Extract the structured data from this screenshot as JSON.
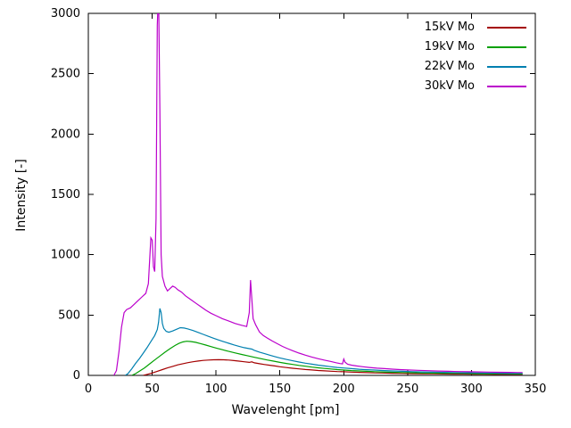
{
  "chart_data": {
    "type": "line",
    "title": "",
    "xlabel": "Wavelenght [pm]",
    "ylabel": "Intensity [-]",
    "xlim": [
      0,
      350
    ],
    "ylim": [
      0,
      3000
    ],
    "xticks": [
      0,
      50,
      100,
      150,
      200,
      250,
      300,
      350
    ],
    "yticks": [
      0,
      500,
      1000,
      1500,
      2000,
      2500,
      3000
    ],
    "grid": false,
    "legend_position": "top-right",
    "series": [
      {
        "name": "15kV Mo",
        "color": "#a40000",
        "points": [
          [
            43,
            0
          ],
          [
            46,
            8
          ],
          [
            50,
            20
          ],
          [
            54,
            34
          ],
          [
            58,
            48
          ],
          [
            62,
            62
          ],
          [
            66,
            75
          ],
          [
            70,
            87
          ],
          [
            74,
            97
          ],
          [
            78,
            106
          ],
          [
            82,
            113
          ],
          [
            86,
            119
          ],
          [
            90,
            124
          ],
          [
            94,
            127
          ],
          [
            98,
            129
          ],
          [
            102,
            130
          ],
          [
            106,
            129
          ],
          [
            110,
            127
          ],
          [
            114,
            123
          ],
          [
            118,
            118
          ],
          [
            122,
            113
          ],
          [
            126,
            108
          ],
          [
            128,
            112
          ],
          [
            130,
            104
          ],
          [
            134,
            97
          ],
          [
            138,
            90
          ],
          [
            142,
            84
          ],
          [
            146,
            78
          ],
          [
            150,
            72
          ],
          [
            155,
            65
          ],
          [
            160,
            59
          ],
          [
            165,
            54
          ],
          [
            170,
            49
          ],
          [
            175,
            45
          ],
          [
            180,
            41
          ],
          [
            185,
            38
          ],
          [
            190,
            35
          ],
          [
            195,
            32
          ],
          [
            200,
            30
          ],
          [
            206,
            27
          ],
          [
            212,
            25
          ],
          [
            218,
            23
          ],
          [
            224,
            21
          ],
          [
            230,
            20
          ],
          [
            238,
            18
          ],
          [
            246,
            16
          ],
          [
            254,
            15
          ],
          [
            262,
            14
          ],
          [
            270,
            13
          ],
          [
            278,
            12
          ],
          [
            286,
            11
          ],
          [
            294,
            11
          ],
          [
            302,
            10
          ],
          [
            310,
            10
          ],
          [
            318,
            9
          ],
          [
            326,
            9
          ],
          [
            334,
            9
          ],
          [
            340,
            9
          ]
        ]
      },
      {
        "name": "19kV Mo",
        "color": "#00a000",
        "points": [
          [
            34,
            0
          ],
          [
            37,
            15
          ],
          [
            40,
            35
          ],
          [
            44,
            62
          ],
          [
            48,
            95
          ],
          [
            52,
            128
          ],
          [
            56,
            160
          ],
          [
            60,
            192
          ],
          [
            64,
            222
          ],
          [
            68,
            248
          ],
          [
            71,
            265
          ],
          [
            74,
            277
          ],
          [
            77,
            283
          ],
          [
            80,
            281
          ],
          [
            84,
            274
          ],
          [
            88,
            263
          ],
          [
            92,
            251
          ],
          [
            96,
            239
          ],
          [
            100,
            227
          ],
          [
            105,
            213
          ],
          [
            110,
            199
          ],
          [
            115,
            186
          ],
          [
            120,
            174
          ],
          [
            125,
            162
          ],
          [
            130,
            150
          ],
          [
            135,
            139
          ],
          [
            140,
            128
          ],
          [
            145,
            118
          ],
          [
            150,
            108
          ],
          [
            155,
            99
          ],
          [
            160,
            91
          ],
          [
            165,
            83
          ],
          [
            170,
            76
          ],
          [
            175,
            69
          ],
          [
            180,
            63
          ],
          [
            185,
            58
          ],
          [
            190,
            53
          ],
          [
            195,
            48
          ],
          [
            200,
            44
          ],
          [
            206,
            40
          ],
          [
            212,
            37
          ],
          [
            218,
            34
          ],
          [
            224,
            31
          ],
          [
            230,
            29
          ],
          [
            238,
            26
          ],
          [
            246,
            24
          ],
          [
            254,
            22
          ],
          [
            262,
            20
          ],
          [
            270,
            19
          ],
          [
            278,
            18
          ],
          [
            286,
            17
          ],
          [
            294,
            16
          ],
          [
            302,
            15
          ],
          [
            310,
            14
          ],
          [
            318,
            13
          ],
          [
            326,
            13
          ],
          [
            334,
            12
          ],
          [
            340,
            12
          ]
        ]
      },
      {
        "name": "22kV Mo",
        "color": "#0080b0",
        "points": [
          [
            29,
            0
          ],
          [
            31,
            15
          ],
          [
            34,
            55
          ],
          [
            37,
            100
          ],
          [
            40,
            140
          ],
          [
            43,
            185
          ],
          [
            46,
            230
          ],
          [
            49,
            280
          ],
          [
            52,
            330
          ],
          [
            54,
            380
          ],
          [
            55,
            440
          ],
          [
            56,
            555
          ],
          [
            57,
            520
          ],
          [
            58,
            430
          ],
          [
            59,
            390
          ],
          [
            61,
            365
          ],
          [
            63,
            358
          ],
          [
            66,
            368
          ],
          [
            69,
            382
          ],
          [
            72,
            395
          ],
          [
            75,
            392
          ],
          [
            78,
            385
          ],
          [
            82,
            372
          ],
          [
            86,
            356
          ],
          [
            90,
            340
          ],
          [
            94,
            324
          ],
          [
            98,
            308
          ],
          [
            102,
            293
          ],
          [
            106,
            279
          ],
          [
            110,
            266
          ],
          [
            114,
            253
          ],
          [
            118,
            241
          ],
          [
            122,
            230
          ],
          [
            126,
            222
          ],
          [
            128,
            218
          ],
          [
            130,
            208
          ],
          [
            134,
            193
          ],
          [
            138,
            180
          ],
          [
            142,
            168
          ],
          [
            146,
            156
          ],
          [
            150,
            145
          ],
          [
            155,
            132
          ],
          [
            160,
            121
          ],
          [
            165,
            111
          ],
          [
            170,
            101
          ],
          [
            175,
            93
          ],
          [
            180,
            85
          ],
          [
            185,
            78
          ],
          [
            190,
            72
          ],
          [
            195,
            66
          ],
          [
            200,
            61
          ],
          [
            206,
            56
          ],
          [
            212,
            51
          ],
          [
            218,
            47
          ],
          [
            224,
            44
          ],
          [
            230,
            41
          ],
          [
            238,
            37
          ],
          [
            246,
            34
          ],
          [
            254,
            31
          ],
          [
            262,
            29
          ],
          [
            270,
            27
          ],
          [
            278,
            25
          ],
          [
            286,
            24
          ],
          [
            294,
            22
          ],
          [
            302,
            21
          ],
          [
            310,
            20
          ],
          [
            318,
            19
          ],
          [
            326,
            18
          ],
          [
            334,
            17
          ],
          [
            340,
            17
          ]
        ]
      },
      {
        "name": "30kV Mo",
        "color": "#bb00cc",
        "points": [
          [
            20,
            0
          ],
          [
            22,
            40
          ],
          [
            24,
            200
          ],
          [
            26,
            400
          ],
          [
            28,
            520
          ],
          [
            30,
            545
          ],
          [
            33,
            560
          ],
          [
            36,
            590
          ],
          [
            39,
            620
          ],
          [
            42,
            650
          ],
          [
            45,
            680
          ],
          [
            47,
            760
          ],
          [
            48,
            950
          ],
          [
            49,
            1140
          ],
          [
            50,
            1120
          ],
          [
            51,
            900
          ],
          [
            52,
            860
          ],
          [
            53,
            1300
          ],
          [
            54,
            2900
          ],
          [
            55,
            3200
          ],
          [
            56,
            2200
          ],
          [
            57,
            1000
          ],
          [
            58,
            820
          ],
          [
            60,
            740
          ],
          [
            62,
            700
          ],
          [
            64,
            720
          ],
          [
            66,
            740
          ],
          [
            68,
            730
          ],
          [
            70,
            710
          ],
          [
            73,
            690
          ],
          [
            76,
            660
          ],
          [
            80,
            630
          ],
          [
            84,
            600
          ],
          [
            88,
            570
          ],
          [
            92,
            540
          ],
          [
            96,
            515
          ],
          [
            100,
            495
          ],
          [
            105,
            470
          ],
          [
            110,
            450
          ],
          [
            115,
            430
          ],
          [
            120,
            415
          ],
          [
            124,
            405
          ],
          [
            126,
            520
          ],
          [
            127,
            790
          ],
          [
            128,
            640
          ],
          [
            129,
            470
          ],
          [
            131,
            420
          ],
          [
            134,
            360
          ],
          [
            137,
            330
          ],
          [
            140,
            310
          ],
          [
            144,
            285
          ],
          [
            148,
            262
          ],
          [
            152,
            240
          ],
          [
            156,
            222
          ],
          [
            160,
            205
          ],
          [
            165,
            185
          ],
          [
            170,
            168
          ],
          [
            175,
            152
          ],
          [
            180,
            138
          ],
          [
            185,
            126
          ],
          [
            190,
            115
          ],
          [
            194,
            105
          ],
          [
            197,
            98
          ],
          [
            199,
            95
          ],
          [
            200,
            135
          ],
          [
            201,
            110
          ],
          [
            203,
            92
          ],
          [
            206,
            85
          ],
          [
            210,
            78
          ],
          [
            215,
            72
          ],
          [
            220,
            66
          ],
          [
            226,
            60
          ],
          [
            232,
            56
          ],
          [
            238,
            52
          ],
          [
            244,
            48
          ],
          [
            250,
            45
          ],
          [
            258,
            42
          ],
          [
            266,
            39
          ],
          [
            274,
            36
          ],
          [
            282,
            34
          ],
          [
            290,
            32
          ],
          [
            298,
            30
          ],
          [
            306,
            29
          ],
          [
            314,
            27
          ],
          [
            322,
            26
          ],
          [
            330,
            25
          ],
          [
            336,
            24
          ],
          [
            340,
            24
          ]
        ]
      }
    ]
  }
}
